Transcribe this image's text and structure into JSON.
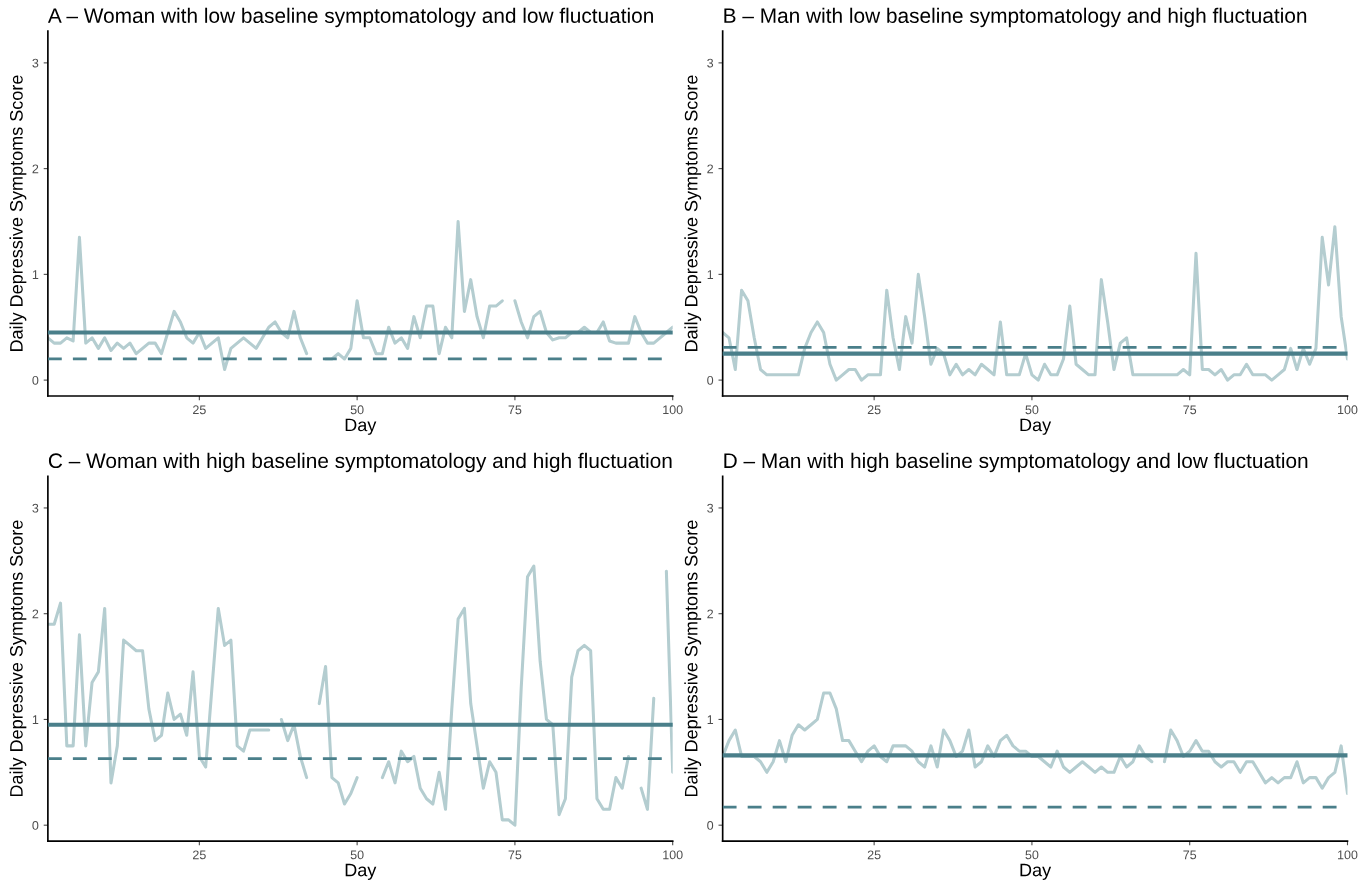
{
  "chart_data": [
    {
      "type": "line",
      "title": "A – Woman with low baseline symptomatology and low fluctuation",
      "xlabel": "Day",
      "ylabel": "Daily Depressive Symptoms Score",
      "xlim": [
        1,
        100
      ],
      "xticks": [
        25,
        50,
        75,
        100
      ],
      "ylim": [
        -0.15,
        3.3
      ],
      "yticks": [
        0,
        1,
        2,
        3
      ],
      "marker": "none",
      "line_style": "solid",
      "x": [
        1,
        2,
        3,
        4,
        5,
        6,
        7,
        8,
        9,
        10,
        11,
        12,
        13,
        14,
        15,
        16,
        17,
        18,
        19,
        20,
        21,
        22,
        23,
        24,
        25,
        26,
        27,
        28,
        29,
        30,
        31,
        32,
        33,
        34,
        35,
        36,
        37,
        38,
        39,
        40,
        41,
        42,
        43,
        44,
        45,
        46,
        47,
        48,
        49,
        50,
        51,
        52,
        53,
        54,
        55,
        56,
        57,
        58,
        59,
        60,
        61,
        62,
        63,
        64,
        65,
        66,
        67,
        68,
        69,
        70,
        71,
        72,
        73,
        74,
        75,
        76,
        77,
        78,
        79,
        80,
        81,
        82,
        83,
        84,
        85,
        86,
        87,
        88,
        89,
        90,
        91,
        92,
        93,
        94,
        95,
        96,
        97,
        98,
        99,
        100
      ],
      "series": [
        {
          "color": "#b4cdd0",
          "values": [
            0.4,
            0.35,
            0.35,
            0.4,
            0.37,
            1.35,
            0.35,
            0.4,
            0.3,
            0.4,
            0.28,
            0.35,
            0.3,
            0.35,
            0.25,
            0.3,
            0.35,
            0.35,
            0.25,
            0.45,
            0.65,
            0.55,
            0.4,
            0.35,
            0.45,
            0.3,
            0.35,
            0.4,
            0.1,
            0.3,
            0.35,
            0.4,
            0.35,
            0.3,
            0.4,
            0.5,
            0.55,
            0.45,
            0.4,
            0.65,
            0.4,
            0.25,
            null,
            null,
            0.2,
            0.2,
            0.25,
            0.2,
            0.3,
            0.75,
            0.4,
            0.4,
            0.25,
            0.25,
            0.5,
            0.35,
            0.4,
            0.3,
            0.6,
            0.4,
            0.7,
            0.7,
            0.25,
            0.5,
            0.4,
            1.5,
            0.65,
            0.95,
            0.6,
            0.4,
            0.7,
            0.7,
            0.75,
            null,
            0.75,
            0.55,
            0.4,
            0.6,
            0.65,
            0.45,
            0.38,
            0.4,
            0.4,
            0.45,
            0.45,
            0.5,
            0.45,
            0.45,
            0.55,
            0.37,
            0.35,
            0.35,
            0.35,
            0.6,
            0.45,
            0.35,
            0.35,
            0.4,
            0.45,
            0.5
          ]
        }
      ],
      "ref_lines": [
        {
          "axis": "y",
          "value": 0.45,
          "color": "#4a7f8a",
          "line_style": "solid"
        },
        {
          "axis": "y",
          "value": 0.2,
          "color": "#4a7f8a",
          "line_style": "dashed"
        }
      ]
    },
    {
      "type": "line",
      "title": "B – Man with low baseline symptomatology and high fluctuation",
      "xlabel": "Day",
      "ylabel": "Daily Depressive Symptoms Score",
      "xlim": [
        1,
        100
      ],
      "xticks": [
        25,
        50,
        75,
        100
      ],
      "ylim": [
        -0.15,
        3.3
      ],
      "yticks": [
        0,
        1,
        2,
        3
      ],
      "marker": "none",
      "line_style": "solid",
      "x": [
        1,
        2,
        3,
        4,
        5,
        6,
        7,
        8,
        9,
        10,
        11,
        12,
        13,
        14,
        15,
        16,
        17,
        18,
        19,
        20,
        21,
        22,
        23,
        24,
        25,
        26,
        27,
        28,
        29,
        30,
        31,
        32,
        33,
        34,
        35,
        36,
        37,
        38,
        39,
        40,
        41,
        42,
        43,
        44,
        45,
        46,
        47,
        48,
        49,
        50,
        51,
        52,
        53,
        54,
        55,
        56,
        57,
        58,
        59,
        60,
        61,
        62,
        63,
        64,
        65,
        66,
        67,
        68,
        69,
        70,
        71,
        72,
        73,
        74,
        75,
        76,
        77,
        78,
        79,
        80,
        81,
        82,
        83,
        84,
        85,
        86,
        87,
        88,
        89,
        90,
        91,
        92,
        93,
        94,
        95,
        96,
        97,
        98,
        99,
        100
      ],
      "series": [
        {
          "color": "#b4cdd0",
          "values": [
            0.45,
            0.4,
            0.1,
            0.85,
            0.75,
            0.4,
            0.1,
            0.05,
            0.05,
            0.05,
            0.05,
            0.05,
            0.05,
            0.3,
            0.45,
            0.55,
            0.45,
            0.15,
            0,
            0.05,
            0.1,
            0.1,
            0,
            0.05,
            0.05,
            0.05,
            0.85,
            0.4,
            0.1,
            0.6,
            0.35,
            1.0,
            0.6,
            0.15,
            0.3,
            0.25,
            0.05,
            0.15,
            0.05,
            0.1,
            0.05,
            0.15,
            0.1,
            0.05,
            0.55,
            0.05,
            0.05,
            0.05,
            0.25,
            0.05,
            0,
            0.15,
            0.05,
            0.05,
            0.2,
            0.7,
            0.15,
            0.1,
            0.05,
            0.05,
            0.95,
            0.55,
            0.1,
            0.35,
            0.4,
            0.05,
            0.05,
            0.05,
            0.05,
            0.05,
            0.05,
            0.05,
            0.05,
            0.1,
            0.05,
            1.2,
            0.1,
            0.1,
            0.05,
            0.1,
            0,
            0.05,
            0.05,
            0.15,
            0.05,
            0.05,
            0.05,
            0,
            0.05,
            0.1,
            0.3,
            0.1,
            0.3,
            0.15,
            0.3,
            1.35,
            0.9,
            1.45,
            0.6,
            0.2
          ]
        }
      ],
      "ref_lines": [
        {
          "axis": "y",
          "value": 0.25,
          "color": "#4a7f8a",
          "line_style": "solid"
        },
        {
          "axis": "y",
          "value": 0.31,
          "color": "#4a7f8a",
          "line_style": "dashed"
        }
      ]
    },
    {
      "type": "line",
      "title": "C – Woman with high baseline symptomatology and high fluctuation",
      "xlabel": "Day",
      "ylabel": "Daily Depressive Symptoms Score",
      "xlim": [
        1,
        100
      ],
      "xticks": [
        25,
        50,
        75,
        100
      ],
      "ylim": [
        -0.15,
        3.3
      ],
      "yticks": [
        0,
        1,
        2,
        3
      ],
      "marker": "none",
      "line_style": "solid",
      "x": [
        1,
        2,
        3,
        4,
        5,
        6,
        7,
        8,
        9,
        10,
        11,
        12,
        13,
        14,
        15,
        16,
        17,
        18,
        19,
        20,
        21,
        22,
        23,
        24,
        25,
        26,
        27,
        28,
        29,
        30,
        31,
        32,
        33,
        34,
        35,
        36,
        37,
        38,
        39,
        40,
        41,
        42,
        43,
        44,
        45,
        46,
        47,
        48,
        49,
        50,
        51,
        52,
        53,
        54,
        55,
        56,
        57,
        58,
        59,
        60,
        61,
        62,
        63,
        64,
        65,
        66,
        67,
        68,
        69,
        70,
        71,
        72,
        73,
        74,
        75,
        76,
        77,
        78,
        79,
        80,
        81,
        82,
        83,
        84,
        85,
        86,
        87,
        88,
        89,
        90,
        91,
        92,
        93,
        94,
        95,
        96,
        97,
        98,
        99,
        100
      ],
      "series": [
        {
          "color": "#b4cdd0",
          "values": [
            1.9,
            1.9,
            2.1,
            0.75,
            0.75,
            1.8,
            0.75,
            1.35,
            1.45,
            2.05,
            0.4,
            0.75,
            1.75,
            1.7,
            1.65,
            1.65,
            1.1,
            0.8,
            0.85,
            1.25,
            1.0,
            1.05,
            0.85,
            1.45,
            0.65,
            0.55,
            1.3,
            2.05,
            1.7,
            1.75,
            0.75,
            0.7,
            0.9,
            0.9,
            0.9,
            0.9,
            null,
            1.0,
            0.8,
            0.95,
            0.65,
            0.45,
            null,
            1.15,
            1.5,
            0.45,
            0.4,
            0.2,
            0.3,
            0.45,
            null,
            null,
            null,
            0.45,
            0.6,
            0.4,
            0.7,
            0.6,
            0.65,
            0.35,
            0.25,
            0.2,
            0.5,
            0.15,
            1.1,
            1.95,
            2.05,
            1.15,
            0.75,
            0.35,
            0.6,
            0.5,
            0.05,
            0.05,
            0,
            1.3,
            2.35,
            2.45,
            1.55,
            1.0,
            0.95,
            0.1,
            0.25,
            1.4,
            1.65,
            1.7,
            1.65,
            0.25,
            0.15,
            0.15,
            0.45,
            0.35,
            0.65,
            null,
            0.35,
            0.15,
            1.2,
            null,
            2.4,
            0.5
          ]
        }
      ],
      "ref_lines": [
        {
          "axis": "y",
          "value": 0.95,
          "color": "#4a7f8a",
          "line_style": "solid"
        },
        {
          "axis": "y",
          "value": 0.63,
          "color": "#4a7f8a",
          "line_style": "dashed"
        }
      ]
    },
    {
      "type": "line",
      "title": "D – Man with high baseline symptomatology and low fluctuation",
      "xlabel": "Day",
      "ylabel": "Daily Depressive Symptoms Score",
      "xlim": [
        1,
        100
      ],
      "xticks": [
        25,
        50,
        75,
        100
      ],
      "ylim": [
        -0.15,
        3.3
      ],
      "yticks": [
        0,
        1,
        2,
        3
      ],
      "marker": "none",
      "line_style": "solid",
      "x": [
        1,
        2,
        3,
        4,
        5,
        6,
        7,
        8,
        9,
        10,
        11,
        12,
        13,
        14,
        15,
        16,
        17,
        18,
        19,
        20,
        21,
        22,
        23,
        24,
        25,
        26,
        27,
        28,
        29,
        30,
        31,
        32,
        33,
        34,
        35,
        36,
        37,
        38,
        39,
        40,
        41,
        42,
        43,
        44,
        45,
        46,
        47,
        48,
        49,
        50,
        51,
        52,
        53,
        54,
        55,
        56,
        57,
        58,
        59,
        60,
        61,
        62,
        63,
        64,
        65,
        66,
        67,
        68,
        69,
        70,
        71,
        72,
        73,
        74,
        75,
        76,
        77,
        78,
        79,
        80,
        81,
        82,
        83,
        84,
        85,
        86,
        87,
        88,
        89,
        90,
        91,
        92,
        93,
        94,
        95,
        96,
        97,
        98,
        99,
        100
      ],
      "series": [
        {
          "color": "#b4cdd0",
          "values": [
            0.65,
            0.8,
            0.9,
            0.65,
            0.65,
            0.65,
            0.6,
            0.5,
            0.6,
            0.8,
            0.6,
            0.85,
            0.95,
            0.9,
            0.95,
            1.0,
            1.25,
            1.25,
            1.1,
            0.8,
            0.8,
            0.7,
            0.6,
            0.7,
            0.75,
            0.65,
            0.6,
            0.75,
            0.75,
            0.75,
            0.7,
            0.6,
            0.55,
            0.75,
            0.55,
            0.9,
            0.8,
            0.65,
            0.7,
            0.9,
            0.55,
            0.6,
            0.75,
            0.65,
            0.8,
            0.85,
            0.75,
            0.7,
            0.7,
            0.65,
            0.65,
            0.6,
            0.55,
            0.7,
            0.55,
            0.5,
            0.55,
            0.6,
            0.55,
            0.5,
            0.55,
            0.5,
            0.5,
            0.65,
            0.55,
            0.6,
            0.75,
            0.65,
            0.6,
            null,
            0.6,
            0.9,
            0.8,
            0.65,
            0.7,
            0.8,
            0.7,
            0.7,
            0.6,
            0.55,
            0.6,
            0.6,
            0.5,
            0.6,
            0.6,
            0.5,
            0.4,
            0.45,
            0.4,
            0.45,
            0.45,
            0.6,
            0.4,
            0.45,
            0.45,
            0.35,
            0.45,
            0.5,
            0.75,
            0.3
          ]
        }
      ],
      "ref_lines": [
        {
          "axis": "y",
          "value": 0.66,
          "color": "#4a7f8a",
          "line_style": "solid"
        },
        {
          "axis": "y",
          "value": 0.17,
          "color": "#4a7f8a",
          "line_style": "dashed"
        }
      ]
    }
  ]
}
